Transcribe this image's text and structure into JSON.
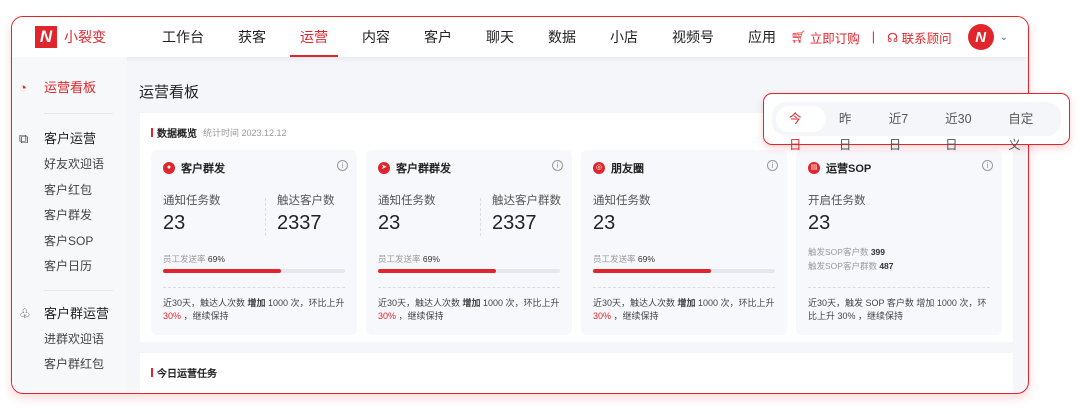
{
  "app": {
    "name": "小裂变"
  },
  "nav": [
    "工作台",
    "获客",
    "运营",
    "内容",
    "客户",
    "聊天",
    "数据",
    "小店",
    "视频号",
    "应用"
  ],
  "nav_active": "运营",
  "header": {
    "buy": "立即订购",
    "contact": "联系顾问"
  },
  "sidebar": {
    "active": "运营看板",
    "group1": {
      "title": "客户运营",
      "items": [
        "好友欢迎语",
        "客户红包",
        "客户群发",
        "客户SOP",
        "客户日历"
      ]
    },
    "group2": {
      "title": "客户群运营",
      "items": [
        "进群欢迎语",
        "客户群红包"
      ]
    }
  },
  "page": {
    "title": "运营看板",
    "section": "数据概览",
    "stat_time": "统计时间 2023.12.12",
    "section2": "今日运营任务"
  },
  "cards": [
    {
      "title": "客户群发",
      "l1": "通知任务数",
      "v1": "23",
      "l2": "触达客户数",
      "v2": "2337",
      "rate_label": "员工发送率",
      "rate": "69%",
      "rate_value": 0.69,
      "foot1": "近30天，触达人次数 ",
      "foot_bold": "增加",
      "foot2": " 1000 次，环比上升 ",
      "pct": "30%",
      "foot3": " ，继续保持"
    },
    {
      "title": "客户群群发",
      "l1": "通知任务数",
      "v1": "23",
      "l2": "触达客户群数",
      "v2": "2337",
      "rate_label": "员工发送率",
      "rate": "69%",
      "rate_value": 0.69,
      "foot1": "近30天，触达人次数 ",
      "foot_bold": "增加",
      "foot2": " 1000 次，环比上升 ",
      "pct": "30%",
      "foot3": " ，继续保持"
    },
    {
      "title": "朋友圈",
      "l1": "通知任务数",
      "v1": "23",
      "rate_label": "员工发送率",
      "rate": "69%",
      "rate_value": 0.69,
      "foot1": "近30天，触达人次数 ",
      "foot_bold": "增加",
      "foot2": " 1000 次，环比上升 ",
      "pct": "30%",
      "foot3": " ，继续保持"
    },
    {
      "title": "运营SOP",
      "l1": "开启任务数",
      "v1": "23",
      "s1": "触发SOP客户数",
      "s1v": "399",
      "s2": "触发SOP客户群数",
      "s2v": "487",
      "foot": "近30天，触发 SOP 客户数 增加 1000 次，环比上升 30% ，继续保持"
    }
  ],
  "date_filter": {
    "options": [
      "今日",
      "昨日",
      "近7日",
      "近30日",
      "自定义"
    ],
    "selected": "今日"
  },
  "colors": {
    "accent": "#e0262c"
  }
}
